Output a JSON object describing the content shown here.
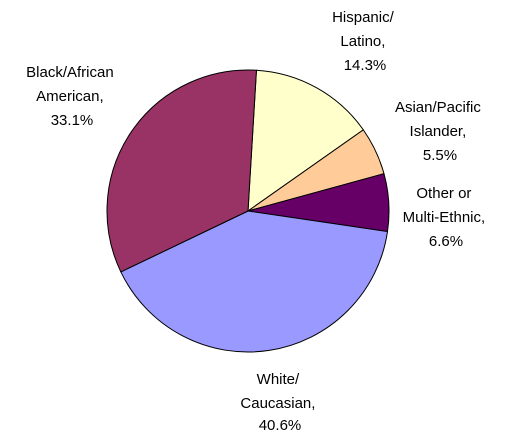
{
  "chart_data": {
    "type": "pie",
    "title": "",
    "slices": [
      {
        "label": [
          "Hispanic/",
          "Latino,"
        ],
        "value": 14.3,
        "value_label": "14.3%",
        "color": "#ffffcc"
      },
      {
        "label": [
          "Asian/Pacific",
          "Islander,"
        ],
        "value": 5.5,
        "value_label": "5.5%",
        "color": "#ffcc99"
      },
      {
        "label": [
          "Other or",
          "Multi-Ethnic,"
        ],
        "value": 6.6,
        "value_label": "6.6%",
        "color": "#660066"
      },
      {
        "label": [
          "White/",
          "Caucasian,"
        ],
        "value": 40.6,
        "value_label": "40.6%",
        "color": "#9999ff"
      },
      {
        "label": [
          "Black/African",
          "American,"
        ],
        "value": 33.1,
        "value_label": "33.1%",
        "color": "#993366"
      }
    ]
  }
}
